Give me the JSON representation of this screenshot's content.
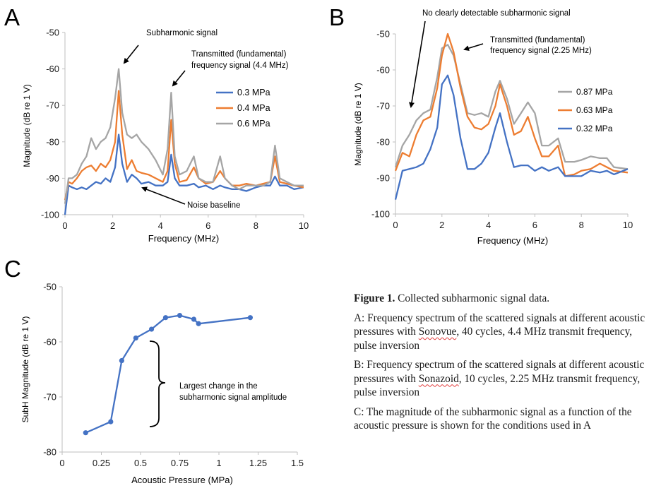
{
  "colors": {
    "blue": "#4472c4",
    "orange": "#ed7d31",
    "gray": "#a5a5a5",
    "axis": "#bfbfbf",
    "text": "#1a1a1a"
  },
  "chart_data": [
    {
      "panel": "A",
      "type": "line",
      "ylabel": "Magnitude (dB re 1 V)",
      "xlabel": "Frequency (MHz)",
      "xlim": [
        0,
        10
      ],
      "ylim": [
        -100,
        -50
      ],
      "xticks": [
        "0",
        "2",
        "4",
        "6",
        "8",
        "10"
      ],
      "yticks": [
        "-100",
        "-90",
        "-80",
        "-70",
        "-60",
        "-50"
      ],
      "legend_position": "right",
      "annotations": [
        "Subharmonic signal",
        "Transmitted (fundamental)",
        "frequency signal (4.4 MHz)",
        "Noise baseline"
      ],
      "series": [
        {
          "name": "0.3 MPa",
          "color": "#4472c4",
          "x": [
            0,
            0.15,
            0.3,
            0.5,
            0.7,
            0.9,
            1.1,
            1.3,
            1.5,
            1.7,
            1.9,
            2.1,
            2.25,
            2.4,
            2.6,
            2.8,
            3.0,
            3.2,
            3.5,
            3.8,
            4.1,
            4.3,
            4.45,
            4.6,
            4.8,
            5.1,
            5.4,
            5.6,
            5.9,
            6.2,
            6.5,
            6.7,
            7.0,
            7.3,
            7.6,
            8.0,
            8.3,
            8.6,
            8.8,
            9.0,
            9.3,
            9.6,
            10
          ],
          "y": [
            -100,
            -92,
            -92.5,
            -93,
            -92.5,
            -93,
            -92,
            -91,
            -91.5,
            -90,
            -91,
            -87,
            -78,
            -86,
            -91,
            -89,
            -90,
            -91.5,
            -91,
            -92,
            -92,
            -91,
            -83.5,
            -90,
            -92,
            -92,
            -91.5,
            -92.5,
            -92,
            -93,
            -92,
            -92.5,
            -93,
            -93,
            -93.5,
            -92.5,
            -92,
            -92,
            -89.5,
            -92,
            -92,
            -93,
            -92.5
          ]
        },
        {
          "name": "0.4 MPa",
          "color": "#ed7d31",
          "x": [
            0,
            0.15,
            0.3,
            0.5,
            0.7,
            0.9,
            1.1,
            1.3,
            1.5,
            1.7,
            1.9,
            2.1,
            2.25,
            2.4,
            2.6,
            2.8,
            3.0,
            3.2,
            3.5,
            3.8,
            4.1,
            4.3,
            4.45,
            4.6,
            4.8,
            5.1,
            5.4,
            5.6,
            5.9,
            6.2,
            6.5,
            6.7,
            7.0,
            7.3,
            7.6,
            8.0,
            8.3,
            8.6,
            8.8,
            9.0,
            9.3,
            9.6,
            10
          ],
          "y": [
            -96,
            -91,
            -91.5,
            -90,
            -88,
            -87,
            -86.5,
            -88,
            -86,
            -87,
            -85,
            -80,
            -66,
            -78,
            -87.5,
            -85,
            -88,
            -88.5,
            -89,
            -90,
            -91,
            -88,
            -74,
            -86,
            -91,
            -90.5,
            -87,
            -90,
            -91.5,
            -91,
            -88,
            -90,
            -92,
            -92,
            -91.5,
            -92,
            -91.5,
            -91,
            -84,
            -91,
            -91.5,
            -92,
            -92.5
          ]
        },
        {
          "name": "0.6 MPa",
          "color": "#a5a5a5",
          "x": [
            0,
            0.15,
            0.3,
            0.5,
            0.7,
            0.9,
            1.1,
            1.3,
            1.5,
            1.7,
            1.9,
            2.1,
            2.25,
            2.4,
            2.6,
            2.8,
            3.0,
            3.2,
            3.5,
            3.8,
            4.1,
            4.3,
            4.45,
            4.6,
            4.8,
            5.1,
            5.4,
            5.6,
            5.9,
            6.2,
            6.5,
            6.7,
            7.0,
            7.3,
            7.6,
            8.0,
            8.3,
            8.6,
            8.8,
            9.0,
            9.3,
            9.6,
            10
          ],
          "y": [
            -97,
            -90,
            -90,
            -89,
            -86,
            -84,
            -79,
            -82,
            -80,
            -79,
            -76,
            -68,
            -60,
            -72,
            -78,
            -79,
            -78,
            -80,
            -82,
            -85,
            -89,
            -82,
            -66.5,
            -84,
            -89,
            -88,
            -84,
            -90,
            -91,
            -91,
            -84,
            -90,
            -92,
            -93,
            -92,
            -92,
            -92,
            -91,
            -81,
            -90,
            -91,
            -92,
            -92
          ]
        }
      ]
    },
    {
      "panel": "B",
      "type": "line",
      "ylabel": "Magnitude (dB re 1 V)",
      "xlabel": "Frequency (MHz)",
      "xlim": [
        0,
        10
      ],
      "ylim": [
        -100,
        -50
      ],
      "xticks": [
        "0",
        "2",
        "4",
        "6",
        "8",
        "10"
      ],
      "yticks": [
        "-100",
        "-90",
        "-80",
        "-70",
        "-60",
        "-50"
      ],
      "legend_position": "right",
      "annotations": [
        "No clearly detectable subharmonic signal",
        "Transmitted (fundamental)",
        "frequency signal (2.25 MHz)"
      ],
      "series": [
        {
          "name": "0.87 MPa",
          "color": "#a5a5a5",
          "x": [
            0,
            0.3,
            0.6,
            0.9,
            1.2,
            1.5,
            1.8,
            2.0,
            2.25,
            2.5,
            2.8,
            3.1,
            3.4,
            3.7,
            4.0,
            4.3,
            4.5,
            4.8,
            5.1,
            5.4,
            5.7,
            6.0,
            6.3,
            6.6,
            7.0,
            7.3,
            7.7,
            8.0,
            8.4,
            8.8,
            9.1,
            9.4,
            10
          ],
          "y": [
            -87,
            -81,
            -78,
            -74,
            -72,
            -71,
            -62,
            -54,
            -53,
            -56,
            -64,
            -72,
            -72.5,
            -72,
            -73,
            -66,
            -63,
            -68,
            -75,
            -72,
            -69,
            -72,
            -81,
            -81,
            -79,
            -85.5,
            -85.5,
            -85,
            -84,
            -84.5,
            -84.5,
            -87,
            -87.5
          ]
        },
        {
          "name": "0.63 MPa",
          "color": "#ed7d31",
          "x": [
            0,
            0.3,
            0.6,
            0.9,
            1.2,
            1.5,
            1.8,
            2.0,
            2.25,
            2.5,
            2.8,
            3.1,
            3.4,
            3.7,
            4.0,
            4.3,
            4.5,
            4.8,
            5.1,
            5.4,
            5.7,
            6.0,
            6.3,
            6.6,
            7.0,
            7.3,
            7.7,
            8.0,
            8.4,
            8.8,
            9.1,
            9.4,
            10
          ],
          "y": [
            -88,
            -83,
            -84,
            -78,
            -74,
            -73,
            -65,
            -56,
            -50,
            -55,
            -65,
            -73,
            -76,
            -76.5,
            -75,
            -70,
            -64,
            -70,
            -78,
            -77,
            -73,
            -79,
            -84,
            -84,
            -81,
            -89.5,
            -89,
            -88,
            -87.5,
            -86,
            -87,
            -88,
            -88.5
          ]
        },
        {
          "name": "0.32 MPa",
          "color": "#4472c4",
          "x": [
            0,
            0.3,
            0.6,
            0.9,
            1.2,
            1.5,
            1.8,
            2.0,
            2.25,
            2.5,
            2.8,
            3.1,
            3.4,
            3.7,
            4.0,
            4.3,
            4.5,
            4.8,
            5.1,
            5.4,
            5.7,
            6.0,
            6.3,
            6.6,
            7.0,
            7.3,
            7.7,
            8.0,
            8.4,
            8.8,
            9.1,
            9.4,
            10
          ],
          "y": [
            -96,
            -88,
            -87.5,
            -87,
            -86,
            -82,
            -76,
            -64,
            -61.5,
            -67,
            -79,
            -87.5,
            -87.5,
            -86,
            -83,
            -76,
            -72,
            -80,
            -87,
            -86.5,
            -86.5,
            -88,
            -87,
            -88,
            -87,
            -89.5,
            -89.5,
            -89.5,
            -88,
            -88.5,
            -88,
            -89,
            -87.5
          ]
        }
      ]
    },
    {
      "panel": "C",
      "type": "line",
      "ylabel": "SubH Magnitude (dB re 1 V)",
      "xlabel": "Acoustic Pressure (MPa)",
      "xlim": [
        0,
        1.5
      ],
      "ylim": [
        -80,
        -50
      ],
      "xticks": [
        "0",
        "0.25",
        "0.5",
        "0.75",
        "1",
        "1.25",
        "1.5"
      ],
      "yticks": [
        "-80",
        "-70",
        "-60",
        "-50"
      ],
      "annotations": [
        "Largest change in the",
        "subharmonic signal amplitude"
      ],
      "series": [
        {
          "name": "SubH",
          "color": "#4472c4",
          "x": [
            0.15,
            0.31,
            0.38,
            0.47,
            0.57,
            0.66,
            0.75,
            0.84,
            0.87,
            1.2
          ],
          "y": [
            -76.5,
            -74.5,
            -63.4,
            -59.3,
            -57.7,
            -55.6,
            -55.2,
            -55.9,
            -56.7,
            -55.6
          ]
        }
      ]
    }
  ],
  "panel_labels": {
    "a": "A",
    "b": "B",
    "c": "C"
  },
  "caption": {
    "title_bold": "Figure 1.",
    "title_rest": " Collected subharmonic signal data.",
    "a_1": "A: Frequency spectrum of the scattered signals at different acoustic pressures with ",
    "a_word": "Sonovue",
    "a_2": ", 40 cycles, 4.4 MHz transmit frequency, pulse inversion",
    "b_1": "B: Frequency spectrum of the scattered signals at different acoustic pressures with ",
    "b_word": "Sonazoid",
    "b_2": ", 10 cycles, 2.25 MHz transmit frequency, pulse inversion",
    "c": "C: The magnitude of the subharmonic signal as a function of the acoustic pressure is shown for the conditions used in A"
  }
}
